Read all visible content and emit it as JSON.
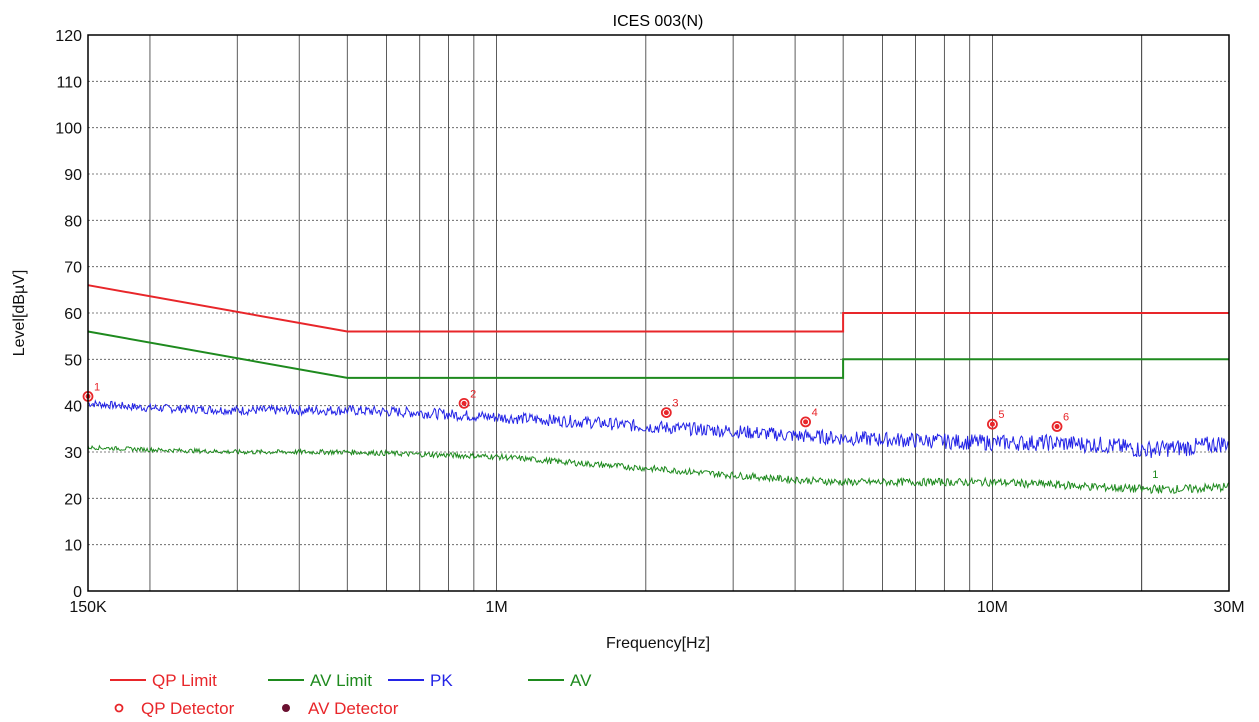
{
  "chart_data": {
    "type": "line",
    "title": "ICES 003(N)",
    "xlabel": "Frequency[Hz]",
    "ylabel": "Level[dBµV]",
    "x_scale": "log",
    "xlim": [
      150000,
      30000000
    ],
    "ylim": [
      0,
      120
    ],
    "y_ticks": [
      0,
      10,
      20,
      30,
      40,
      50,
      60,
      70,
      80,
      90,
      100,
      110,
      120
    ],
    "x_tick_labels": [
      {
        "value": 150000,
        "label": "150K"
      },
      {
        "value": 1000000,
        "label": "1M"
      },
      {
        "value": 10000000,
        "label": "10M"
      },
      {
        "value": 30000000,
        "label": "30M"
      }
    ],
    "grid": true,
    "series": [
      {
        "name": "QP Limit",
        "color": "#e8262a",
        "x": [
          150000,
          500000,
          500000,
          5000000,
          5000000,
          30000000
        ],
        "y": [
          66,
          56,
          56,
          56,
          60,
          60
        ]
      },
      {
        "name": "AV Limit",
        "color": "#1e8a1e",
        "x": [
          150000,
          500000,
          500000,
          5000000,
          5000000,
          30000000
        ],
        "y": [
          56,
          46,
          46,
          46,
          50,
          50
        ]
      },
      {
        "name": "PK",
        "color": "#2424e6",
        "x": [
          150000,
          200000,
          300000,
          500000,
          700000,
          1000000,
          1500000,
          2000000,
          3000000,
          4000000,
          5000000,
          7000000,
          10000000,
          13000000,
          17000000,
          20000000,
          25000000,
          30000000
        ],
        "y": [
          40.5,
          39.5,
          39,
          39,
          38.5,
          37.5,
          36.5,
          35.5,
          34.5,
          33.5,
          33,
          32.5,
          32,
          32,
          31.5,
          30.5,
          31,
          32
        ],
        "noise": 1.4
      },
      {
        "name": "AV",
        "color": "#1e8a1e",
        "x": [
          150000,
          200000,
          300000,
          500000,
          700000,
          1000000,
          1500000,
          2000000,
          3000000,
          4000000,
          5000000,
          7000000,
          10000000,
          13000000,
          16000000,
          20000000,
          25000000,
          30000000
        ],
        "y": [
          31,
          30.5,
          30,
          30,
          29.5,
          29,
          27.5,
          26.5,
          25,
          24,
          23.5,
          23.5,
          23.5,
          23,
          22.5,
          22,
          22,
          22.5
        ],
        "noise": 0.7
      }
    ],
    "markers": [
      {
        "label": "1",
        "x": 150000,
        "y": 42
      },
      {
        "label": "2",
        "x": 860000,
        "y": 40.5
      },
      {
        "label": "3",
        "x": 2200000,
        "y": 38.5
      },
      {
        "label": "4",
        "x": 4200000,
        "y": 36.5
      },
      {
        "label": "5",
        "x": 10000000,
        "y": 36
      },
      {
        "label": "6",
        "x": 13500000,
        "y": 35.5
      }
    ],
    "av_end_label": "1",
    "marker_color": "#e8262a",
    "legend": {
      "position": "bottom-left",
      "lines": [
        {
          "label": "QP Limit",
          "color": "#e8262a"
        },
        {
          "label": "AV Limit",
          "color": "#1e8a1e"
        },
        {
          "label": "PK",
          "color": "#2424e6"
        },
        {
          "label": "AV",
          "color": "#1e8a1e"
        }
      ],
      "symbols": [
        {
          "label": "QP Detector",
          "symbol": "circle-open",
          "color": "#e8262a"
        },
        {
          "label": "AV Detector",
          "symbol": "circle-filled",
          "color": "#6a1030"
        }
      ]
    }
  }
}
